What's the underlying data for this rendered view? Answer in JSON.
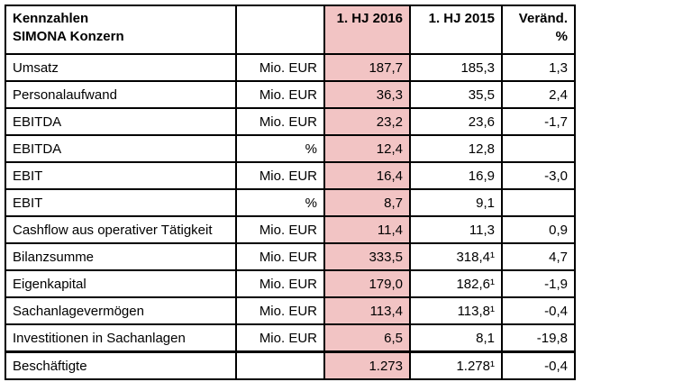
{
  "chart_data": {
    "type": "table",
    "title": "Kennzahlen SIMONA Konzern",
    "header": {
      "title_line1": "Kennzahlen",
      "title_line2": "SIMONA Konzern",
      "unit_label": "",
      "col_2016": "1. HJ 2016",
      "col_2015": "1. HJ 2015",
      "change_line1": "Veränd.",
      "change_line2": "%"
    },
    "rows": [
      {
        "label": "Umsatz",
        "unit": "Mio. EUR",
        "hj2016": "187,7",
        "hj2015": "185,3",
        "change": "1,3"
      },
      {
        "label": "Personalaufwand",
        "unit": "Mio. EUR",
        "hj2016": "36,3",
        "hj2015": "35,5",
        "change": "2,4"
      },
      {
        "label": "EBITDA",
        "unit": "Mio. EUR",
        "hj2016": "23,2",
        "hj2015": "23,6",
        "change": "-1,7"
      },
      {
        "label": "EBITDA",
        "unit": "%",
        "hj2016": "12,4",
        "hj2015": "12,8",
        "change": ""
      },
      {
        "label": "EBIT",
        "unit": "Mio. EUR",
        "hj2016": "16,4",
        "hj2015": "16,9",
        "change": "-3,0"
      },
      {
        "label": "EBIT",
        "unit": "%",
        "hj2016": "8,7",
        "hj2015": "9,1",
        "change": ""
      },
      {
        "label": "Cashflow aus operativer Tätigkeit",
        "unit": "Mio. EUR",
        "hj2016": "11,4",
        "hj2015": "11,3",
        "change": "0,9"
      },
      {
        "label": "Bilanzsumme",
        "unit": "Mio. EUR",
        "hj2016": "333,5",
        "hj2015": "318,4¹",
        "change": "4,7"
      },
      {
        "label": "Eigenkapital",
        "unit": "Mio. EUR",
        "hj2016": "179,0",
        "hj2015": "182,6¹",
        "change": "-1,9"
      },
      {
        "label": "Sachanlagevermögen",
        "unit": "Mio. EUR",
        "hj2016": "113,4",
        "hj2015": "113,8¹",
        "change": "-0,4"
      },
      {
        "label": "Investitionen in Sachanlagen",
        "unit": "Mio. EUR",
        "hj2016": "6,5",
        "hj2015": "8,1",
        "change": "-19,8"
      },
      {
        "label": "Beschäftigte",
        "unit": "",
        "hj2016": "1.273",
        "hj2015": "1.278¹",
        "change": "-0,4"
      }
    ],
    "footnote_marker": "¹",
    "layout": {
      "highlight_column": "1. HJ 2016",
      "highlight_color": "#f2c4c4",
      "border_color": "#000000",
      "background": "#ffffff",
      "grid": true
    }
  }
}
